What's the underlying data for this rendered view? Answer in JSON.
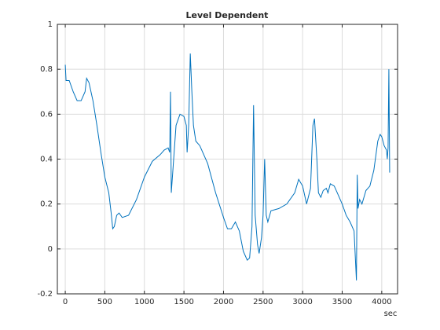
{
  "chart_data": {
    "type": "line",
    "title": "Level Dependent",
    "x_label": "sec",
    "x": [
      0,
      10,
      50,
      100,
      150,
      200,
      250,
      270,
      300,
      350,
      400,
      450,
      500,
      550,
      580,
      600,
      620,
      650,
      680,
      720,
      800,
      900,
      1000,
      1100,
      1200,
      1250,
      1300,
      1320,
      1330,
      1340,
      1360,
      1400,
      1450,
      1500,
      1530,
      1540,
      1560,
      1580,
      1600,
      1620,
      1650,
      1700,
      1800,
      1900,
      2000,
      2050,
      2100,
      2150,
      2200,
      2250,
      2300,
      2330,
      2360,
      2380,
      2400,
      2430,
      2450,
      2480,
      2500,
      2520,
      2540,
      2560,
      2600,
      2700,
      2800,
      2900,
      2950,
      3000,
      3050,
      3100,
      3130,
      3150,
      3180,
      3200,
      3230,
      3260,
      3300,
      3320,
      3350,
      3400,
      3450,
      3500,
      3550,
      3600,
      3650,
      3680,
      3690,
      3700,
      3720,
      3750,
      3800,
      3850,
      3900,
      3950,
      3980,
      4000,
      4030,
      4060,
      4070,
      4080,
      4090,
      4100
    ],
    "values": [
      0.82,
      0.75,
      0.75,
      0.7,
      0.66,
      0.66,
      0.7,
      0.76,
      0.74,
      0.66,
      0.55,
      0.43,
      0.32,
      0.25,
      0.16,
      0.09,
      0.1,
      0.15,
      0.16,
      0.14,
      0.15,
      0.22,
      0.32,
      0.39,
      0.42,
      0.44,
      0.45,
      0.43,
      0.7,
      0.25,
      0.35,
      0.55,
      0.6,
      0.59,
      0.55,
      0.43,
      0.55,
      0.87,
      0.7,
      0.55,
      0.48,
      0.46,
      0.38,
      0.25,
      0.14,
      0.09,
      0.09,
      0.12,
      0.08,
      -0.01,
      -0.05,
      -0.04,
      0.1,
      0.64,
      0.15,
      0.02,
      -0.02,
      0.05,
      0.15,
      0.4,
      0.15,
      0.12,
      0.17,
      0.18,
      0.2,
      0.25,
      0.31,
      0.28,
      0.2,
      0.27,
      0.55,
      0.58,
      0.4,
      0.25,
      0.23,
      0.26,
      0.27,
      0.25,
      0.29,
      0.28,
      0.24,
      0.2,
      0.15,
      0.12,
      0.08,
      -0.14,
      0.33,
      0.18,
      0.22,
      0.2,
      0.26,
      0.28,
      0.35,
      0.48,
      0.51,
      0.5,
      0.46,
      0.44,
      0.4,
      0.45,
      0.8,
      0.34
    ],
    "color": "#0072bd",
    "xlim": [
      -100,
      4200
    ],
    "xticks": [
      0,
      500,
      1000,
      1500,
      2000,
      2500,
      3000,
      3500,
      4000
    ],
    "ylim": [
      -0.2,
      1
    ],
    "yticks": [
      -0.2,
      0,
      0.2,
      0.4,
      0.6,
      0.8,
      1
    ],
    "grid": true
  }
}
